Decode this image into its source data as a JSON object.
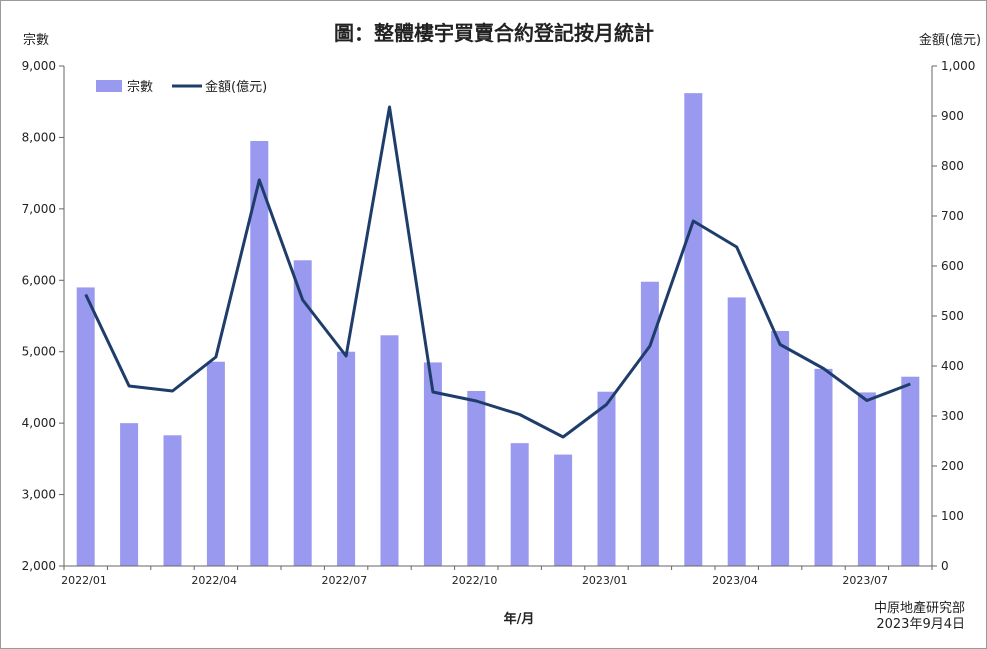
{
  "chart_data": {
    "type": "bar+line",
    "title": "圖：整體樓宇買賣合約登記按月統計",
    "xlabel": "年/月",
    "ylabel_left": "宗數",
    "ylabel_right": "金額(億元)",
    "source": "中原地產研究部",
    "date": "2023年9月4日",
    "ylim_left": [
      2000,
      9000
    ],
    "yticks_left": [
      "2,000",
      "3,000",
      "4,000",
      "5,000",
      "6,000",
      "7,000",
      "8,000",
      "9,000"
    ],
    "ylim_right": [
      0,
      1000
    ],
    "yticks_right": [
      "0",
      "100",
      "200",
      "300",
      "400",
      "500",
      "600",
      "700",
      "800",
      "900",
      "1,000"
    ],
    "categories": [
      "2022/01",
      "2022/02",
      "2022/03",
      "2022/04",
      "2022/05",
      "2022/06",
      "2022/07",
      "2022/08",
      "2022/09",
      "2022/10",
      "2022/11",
      "2022/12",
      "2023/01",
      "2023/02",
      "2023/03",
      "2023/04",
      "2023/05",
      "2023/06",
      "2023/07",
      "2023/08"
    ],
    "xtick_labels": [
      "2022/01",
      "",
      "",
      "2022/04",
      "",
      "",
      "2022/07",
      "",
      "",
      "2022/10",
      "",
      "",
      "2023/01",
      "",
      "",
      "2023/04",
      "",
      "",
      "2023/07",
      ""
    ],
    "series": [
      {
        "name": "宗數",
        "type": "bar",
        "axis": "left",
        "color": "#9999f0",
        "values": [
          5900,
          4000,
          3830,
          4860,
          7950,
          6280,
          5000,
          5230,
          4850,
          4450,
          3720,
          3560,
          4440,
          5980,
          8620,
          5760,
          5290,
          4760,
          4430,
          4650
        ]
      },
      {
        "name": "金額(億元)",
        "type": "line",
        "axis": "right",
        "color": "#1f3d6b",
        "values": [
          543,
          360,
          350,
          418,
          772,
          532,
          420,
          918,
          348,
          330,
          303,
          258,
          323,
          440,
          690,
          638,
          443,
          395,
          331,
          364
        ]
      }
    ],
    "legend_position": "top-left",
    "grid": false
  }
}
